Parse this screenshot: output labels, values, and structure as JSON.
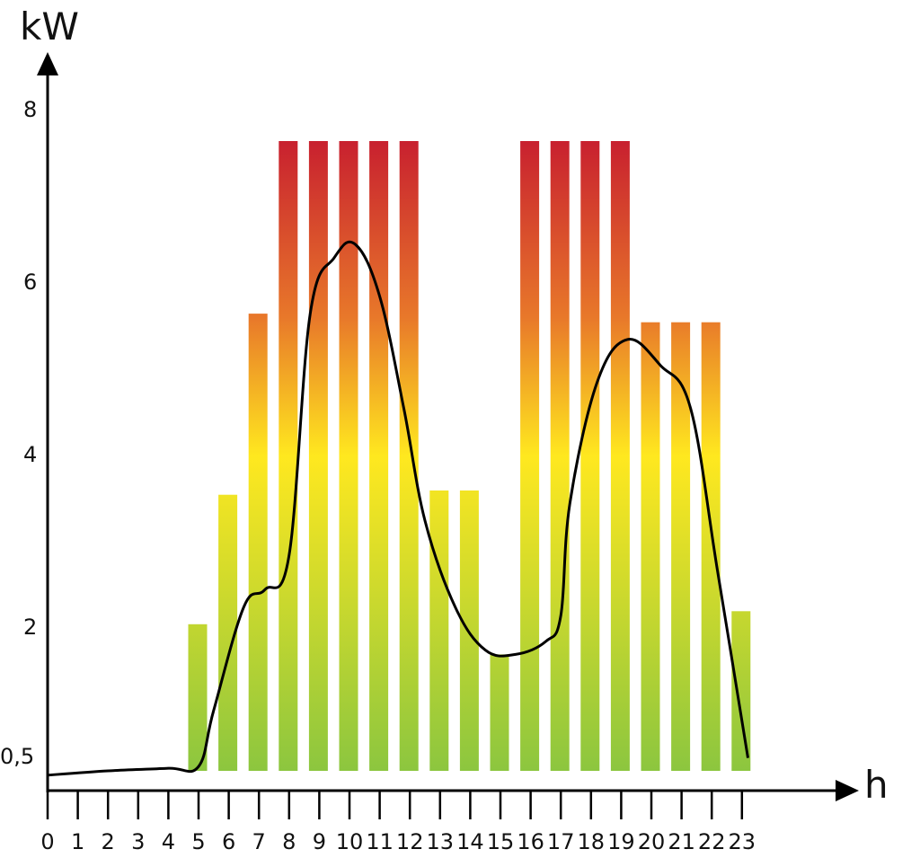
{
  "chart_data": {
    "type": "bar",
    "xlabel": "h",
    "ylabel": "kW",
    "x_ticks": [
      "0",
      "1",
      "2",
      "3",
      "4",
      "5",
      "6",
      "7",
      "8",
      "9",
      "10",
      "11",
      "12",
      "13",
      "14",
      "15",
      "16",
      "17",
      "18",
      "19",
      "20",
      "21",
      "22",
      "23"
    ],
    "y_ticks": [
      {
        "value": 0.5,
        "label": "0,5"
      },
      {
        "value": 2,
        "label": "2"
      },
      {
        "value": 4,
        "label": "4"
      },
      {
        "value": 6,
        "label": "6"
      },
      {
        "value": 8,
        "label": "8"
      }
    ],
    "ylim": [
      0.3,
      8.8
    ],
    "bars": [
      {
        "hour": 5,
        "value": 2.2
      },
      {
        "hour": 6,
        "value": 3.7
      },
      {
        "hour": 7,
        "value": 5.8
      },
      {
        "hour": 8,
        "value": 7.8
      },
      {
        "hour": 9,
        "value": 7.8
      },
      {
        "hour": 10,
        "value": 7.8
      },
      {
        "hour": 11,
        "value": 7.8
      },
      {
        "hour": 12,
        "value": 7.8
      },
      {
        "hour": 13,
        "value": 3.75
      },
      {
        "hour": 14,
        "value": 3.75
      },
      {
        "hour": 15,
        "value": 1.85
      },
      {
        "hour": 16,
        "value": 7.8
      },
      {
        "hour": 17,
        "value": 7.8
      },
      {
        "hour": 18,
        "value": 7.8
      },
      {
        "hour": 19,
        "value": 7.8
      },
      {
        "hour": 20,
        "value": 5.7
      },
      {
        "hour": 21,
        "value": 5.7
      },
      {
        "hour": 22,
        "value": 5.7
      },
      {
        "hour": 23,
        "value": 2.35
      }
    ],
    "curve": [
      {
        "x": 0,
        "y": 0.45
      },
      {
        "x": 2,
        "y": 0.5
      },
      {
        "x": 4,
        "y": 0.53
      },
      {
        "x": 5,
        "y": 0.55
      },
      {
        "x": 5.5,
        "y": 1.2
      },
      {
        "x": 6.5,
        "y": 2.4
      },
      {
        "x": 7.2,
        "y": 2.6
      },
      {
        "x": 8,
        "y": 3.0
      },
      {
        "x": 8.7,
        "y": 5.8
      },
      {
        "x": 9.5,
        "y": 6.45
      },
      {
        "x": 10.2,
        "y": 6.6
      },
      {
        "x": 11,
        "y": 6.0
      },
      {
        "x": 11.8,
        "y": 4.7
      },
      {
        "x": 12.5,
        "y": 3.4
      },
      {
        "x": 13.5,
        "y": 2.4
      },
      {
        "x": 14.5,
        "y": 1.9
      },
      {
        "x": 15.5,
        "y": 1.85
      },
      {
        "x": 16.5,
        "y": 2.0
      },
      {
        "x": 17,
        "y": 2.3
      },
      {
        "x": 17.3,
        "y": 3.6
      },
      {
        "x": 18.2,
        "y": 5.0
      },
      {
        "x": 19.2,
        "y": 5.5
      },
      {
        "x": 20.3,
        "y": 5.2
      },
      {
        "x": 21.3,
        "y": 4.7
      },
      {
        "x": 22.2,
        "y": 2.8
      },
      {
        "x": 23.2,
        "y": 0.65
      }
    ],
    "colors": {
      "bar_low": "#8cc63f",
      "bar_mid": "#ffe81f",
      "bar_orange": "#e8782a",
      "bar_high": "#c8202f",
      "curve": "#000000",
      "axis": "#000000"
    },
    "grid": false,
    "legend": "none"
  }
}
